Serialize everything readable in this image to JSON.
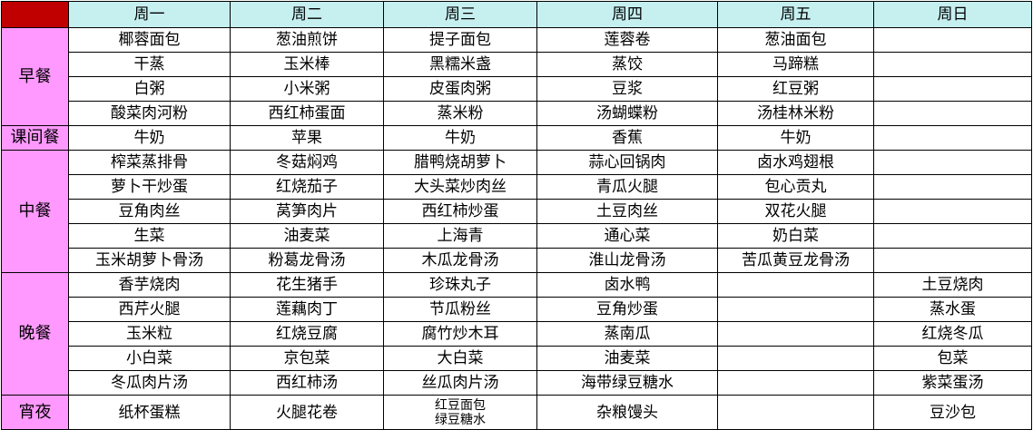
{
  "colors": {
    "corner": "#c00000",
    "header_bg": "#c6eff0",
    "meal_label_bg": "#ff99ff"
  },
  "header": {
    "corner": "",
    "days": [
      "周一",
      "周二",
      "周三",
      "周四",
      "周五",
      "周日"
    ]
  },
  "sections": [
    {
      "label": "早餐",
      "rows": [
        [
          "椰蓉面包",
          "葱油煎饼",
          "提子面包",
          "莲蓉卷",
          "葱油面包",
          ""
        ],
        [
          "干蒸",
          "玉米棒",
          "黑糯米盏",
          "蒸饺",
          "马蹄糕",
          ""
        ],
        [
          "白粥",
          "小米粥",
          "皮蛋肉粥",
          "豆浆",
          "红豆粥",
          ""
        ],
        [
          "酸菜肉河粉",
          "西红柿蛋面",
          "蒸米粉",
          "汤蝴蝶粉",
          "汤桂林米粉",
          ""
        ]
      ]
    },
    {
      "label": "课间餐",
      "rows": [
        [
          "牛奶",
          "苹果",
          "牛奶",
          "香蕉",
          "牛奶",
          ""
        ]
      ]
    },
    {
      "label": "中餐",
      "rows": [
        [
          "榨菜蒸排骨",
          "冬菇焖鸡",
          "腊鸭烧胡萝卜",
          "蒜心回锅肉",
          "卤水鸡翅根",
          ""
        ],
        [
          "萝卜干炒蛋",
          "红烧茄子",
          "大头菜炒肉丝",
          "青瓜火腿",
          "包心贡丸",
          ""
        ],
        [
          "豆角肉丝",
          "莴笋肉片",
          "西红柿炒蛋",
          "土豆肉丝",
          "双花火腿",
          ""
        ],
        [
          "生菜",
          "油麦菜",
          "上海青",
          "通心菜",
          "奶白菜",
          ""
        ],
        [
          "玉米胡萝卜骨汤",
          "粉葛龙骨汤",
          "木瓜龙骨汤",
          "淮山龙骨汤",
          "苦瓜黄豆龙骨汤",
          ""
        ]
      ]
    },
    {
      "label": "晚餐",
      "rows": [
        [
          "香芋烧肉",
          "花生猪手",
          "珍珠丸子",
          "卤水鸭",
          "",
          "土豆烧肉"
        ],
        [
          "西芹火腿",
          "莲藕肉丁",
          "节瓜粉丝",
          "豆角炒蛋",
          "",
          "蒸水蛋"
        ],
        [
          "玉米粒",
          "红烧豆腐",
          "腐竹炒木耳",
          "蒸南瓜",
          "",
          "红烧冬瓜"
        ],
        [
          "小白菜",
          "京包菜",
          "大白菜",
          "油麦菜",
          "",
          "包菜"
        ],
        [
          "冬瓜肉片汤",
          "西红柿汤",
          "丝瓜肉片汤",
          "海带绿豆糖水",
          "",
          "紫菜蛋汤"
        ]
      ]
    },
    {
      "label": "宵夜",
      "rows": [
        [
          "纸杯蛋糕",
          "火腿花卷",
          [
            "红豆面包",
            "绿豆糖水"
          ],
          "杂粮馒头",
          "",
          "豆沙包"
        ]
      ]
    }
  ]
}
